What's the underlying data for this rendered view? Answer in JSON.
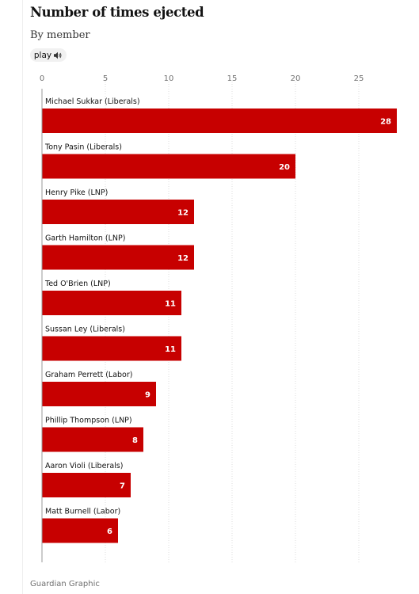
{
  "header": {
    "title": "Number of times ejected",
    "subtitle": "By member",
    "play_label": "play"
  },
  "icons": {
    "play": "speaker-icon"
  },
  "colors": {
    "bar": "#c70000",
    "value_text": "#ffffff",
    "grid": "#dcdcdc",
    "axis": "#999999"
  },
  "source": "Guardian Graphic",
  "chart_data": {
    "type": "bar",
    "orientation": "horizontal",
    "title": "Number of times ejected",
    "subtitle": "By member",
    "xlabel": "",
    "ylabel": "",
    "xlim": [
      0,
      29
    ],
    "ticks": [
      0,
      5,
      10,
      15,
      20,
      25
    ],
    "grid": true,
    "categories": [
      "Michael Sukkar (Liberals)",
      "Tony Pasin (Liberals)",
      "Henry Pike (LNP)",
      "Garth Hamilton (LNP)",
      "Ted O'Brien (LNP)",
      "Sussan Ley (Liberals)",
      "Graham Perrett (Labor)",
      "Phillip Thompson (LNP)",
      "Aaron Violi (Liberals)",
      "Matt Burnell (Labor)"
    ],
    "values": [
      28,
      20,
      12,
      12,
      11,
      11,
      9,
      8,
      7,
      6
    ]
  }
}
